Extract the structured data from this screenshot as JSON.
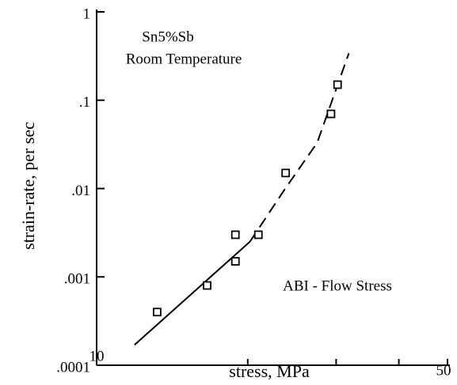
{
  "chart_data": {
    "type": "scatter",
    "xlabel": "stress, MPa",
    "ylabel": "strain-rate, per sec",
    "annotations": [
      "Sn5%Sb",
      "Room Temperature",
      "ABI - Flow Stress"
    ],
    "x": [
      13.2,
      16.6,
      18.9,
      18.9,
      21.0,
      23.8,
      29.3,
      30.2
    ],
    "values": [
      0.0004,
      0.0008,
      0.0015,
      0.003,
      0.003,
      0.015,
      0.07,
      0.15
    ],
    "color": "#000000",
    "lines": [
      {
        "style": "solid",
        "x": [
          11.9,
          20.2
        ],
        "values": [
          0.00017,
          0.0025
        ]
      },
      {
        "style": "dashed",
        "x": [
          20.2,
          23.7,
          27.5,
          31.8
        ],
        "values": [
          0.0025,
          0.0098,
          0.033,
          0.34
        ]
      }
    ],
    "xlog": true,
    "ylog": true,
    "xlim": [
      10,
      50
    ],
    "ylim": [
      0.0001,
      1
    ],
    "xticks": [
      10,
      50
    ],
    "xminorticks": [
      20,
      30,
      40
    ],
    "yticks": [
      {
        "value": 0.0001,
        "label": ".0001"
      },
      {
        "value": 0.001,
        "label": ".001"
      },
      {
        "value": 0.01,
        "label": ".01"
      },
      {
        "value": 0.1,
        "label": ".1"
      },
      1
    ]
  }
}
